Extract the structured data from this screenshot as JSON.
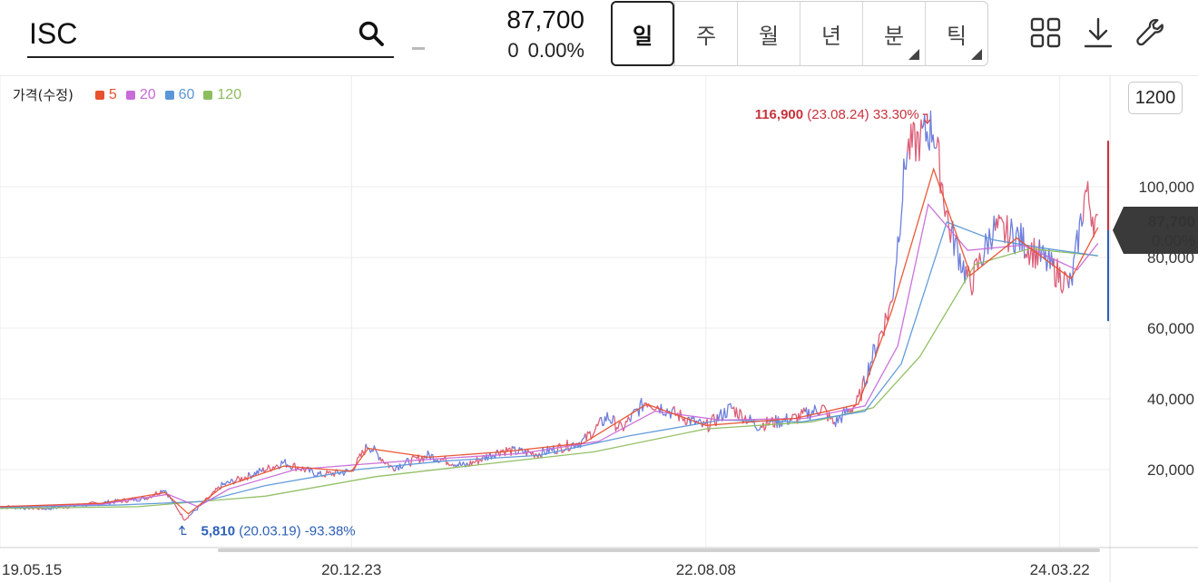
{
  "search": {
    "value": "ISC"
  },
  "quote": {
    "price": "87,700",
    "change": "0",
    "change_pct": "0.00%"
  },
  "period_tabs": [
    {
      "label": "일",
      "active": true,
      "has_corner": false
    },
    {
      "label": "주",
      "active": false,
      "has_corner": false
    },
    {
      "label": "월",
      "active": false,
      "has_corner": false
    },
    {
      "label": "년",
      "active": false,
      "has_corner": false
    },
    {
      "label": "분",
      "active": false,
      "has_corner": true
    },
    {
      "label": "틱",
      "active": false,
      "has_corner": true
    }
  ],
  "toolbar": {
    "icons": [
      "grid-layout-icon",
      "download-icon",
      "wrench-icon"
    ]
  },
  "interval": "1200",
  "colors": {
    "ma5": "#e8512d",
    "ma20": "#c86ad8",
    "ma60": "#5b97d8",
    "ma120": "#8dbd5e",
    "price": "#d84f6a",
    "price_alt": "#5f72d8",
    "high": "#c8323d",
    "low": "#2c5fb7",
    "tag_bg": "#3a3a3a"
  },
  "chart_data": {
    "type": "line",
    "legend": {
      "title": "가격(수정)",
      "items": [
        {
          "label": "5",
          "color": "#e8512d"
        },
        {
          "label": "20",
          "color": "#c86ad8"
        },
        {
          "label": "60",
          "color": "#5b97d8"
        },
        {
          "label": "120",
          "color": "#8dbd5e"
        }
      ]
    },
    "y_ticks": [
      "20,000",
      "40,000",
      "60,000",
      "80,000",
      "100,000"
    ],
    "y_tick_values": [
      20000,
      40000,
      60000,
      80000,
      100000
    ],
    "ylim": [
      0,
      120000
    ],
    "x_ticks": [
      {
        "label": "19.05.15",
        "value": "2019-05-15"
      },
      {
        "label": "20.12.23",
        "value": "2020-12-23"
      },
      {
        "label": "22.08.08",
        "value": "2022-08-08"
      },
      {
        "label": "24.03.22",
        "value": "2024-03-22"
      }
    ],
    "xlim": [
      "2019-05-15",
      "2024-06-14"
    ],
    "price_path": [
      [
        "2019-05-15",
        9500
      ],
      [
        "2019-08-01",
        9000
      ],
      [
        "2019-11-01",
        10500
      ],
      [
        "2020-01-15",
        12000
      ],
      [
        "2020-02-15",
        14500
      ],
      [
        "2020-03-19",
        5810
      ],
      [
        "2020-04-20",
        10500
      ],
      [
        "2020-05-20",
        15500
      ],
      [
        "2020-07-01",
        18000
      ],
      [
        "2020-09-01",
        22000
      ],
      [
        "2020-11-01",
        18500
      ],
      [
        "2020-12-23",
        19500
      ],
      [
        "2021-01-20",
        27000
      ],
      [
        "2021-03-01",
        20500
      ],
      [
        "2021-05-01",
        24000
      ],
      [
        "2021-07-01",
        21000
      ],
      [
        "2021-09-01",
        25500
      ],
      [
        "2021-11-01",
        24500
      ],
      [
        "2022-01-15",
        28000
      ],
      [
        "2022-02-25",
        35000
      ],
      [
        "2022-03-20",
        31500
      ],
      [
        "2022-05-01",
        39500
      ],
      [
        "2022-06-15",
        36000
      ],
      [
        "2022-08-08",
        32000
      ],
      [
        "2022-09-20",
        37500
      ],
      [
        "2022-11-01",
        32500
      ],
      [
        "2023-01-05",
        34500
      ],
      [
        "2023-02-20",
        37500
      ],
      [
        "2023-03-10",
        33000
      ],
      [
        "2023-04-20",
        39000
      ],
      [
        "2023-05-10",
        50000
      ],
      [
        "2023-06-15",
        67000
      ],
      [
        "2023-07-10",
        110000
      ],
      [
        "2023-08-24",
        116900
      ],
      [
        "2023-09-20",
        88000
      ],
      [
        "2023-10-25",
        72000
      ],
      [
        "2023-12-01",
        88000
      ],
      [
        "2024-01-10",
        86000
      ],
      [
        "2024-02-20",
        80000
      ],
      [
        "2024-04-10",
        72000
      ],
      [
        "2024-05-05",
        99000
      ],
      [
        "2024-05-25",
        87700
      ]
    ],
    "ma5": [
      [
        "2019-05-15",
        9500
      ],
      [
        "2019-11-01",
        10500
      ],
      [
        "2020-02-15",
        13500
      ],
      [
        "2020-03-25",
        7500
      ],
      [
        "2020-05-20",
        15000
      ],
      [
        "2020-09-01",
        21000
      ],
      [
        "2020-12-23",
        19500
      ],
      [
        "2021-01-20",
        26000
      ],
      [
        "2021-05-01",
        23500
      ],
      [
        "2021-09-01",
        25000
      ],
      [
        "2022-01-15",
        27500
      ],
      [
        "2022-05-01",
        38500
      ],
      [
        "2022-08-08",
        32500
      ],
      [
        "2023-01-05",
        34500
      ],
      [
        "2023-04-20",
        38500
      ],
      [
        "2023-06-15",
        65000
      ],
      [
        "2023-08-24",
        105000
      ],
      [
        "2023-10-25",
        75000
      ],
      [
        "2024-01-10",
        85500
      ],
      [
        "2024-04-10",
        74000
      ],
      [
        "2024-05-25",
        88500
      ]
    ],
    "ma20": [
      [
        "2019-05-15",
        9500
      ],
      [
        "2019-11-01",
        10200
      ],
      [
        "2020-02-20",
        13000
      ],
      [
        "2020-04-10",
        9500
      ],
      [
        "2020-06-01",
        14500
      ],
      [
        "2020-09-20",
        20000
      ],
      [
        "2021-01-10",
        21500
      ],
      [
        "2021-05-10",
        23000
      ],
      [
        "2021-10-01",
        24500
      ],
      [
        "2022-02-10",
        28000
      ],
      [
        "2022-05-15",
        36500
      ],
      [
        "2022-09-01",
        34000
      ],
      [
        "2023-01-20",
        34500
      ],
      [
        "2023-05-01",
        38000
      ],
      [
        "2023-06-25",
        55000
      ],
      [
        "2023-08-15",
        95000
      ],
      [
        "2023-10-20",
        82000
      ],
      [
        "2024-01-20",
        83500
      ],
      [
        "2024-04-20",
        76500
      ],
      [
        "2024-05-25",
        84000
      ]
    ],
    "ma60": [
      [
        "2019-05-15",
        9300
      ],
      [
        "2019-12-01",
        10000
      ],
      [
        "2020-04-20",
        11000
      ],
      [
        "2020-08-01",
        15500
      ],
      [
        "2021-01-01",
        20000
      ],
      [
        "2021-06-01",
        22500
      ],
      [
        "2021-11-01",
        24000
      ],
      [
        "2022-04-01",
        29500
      ],
      [
        "2022-09-01",
        34000
      ],
      [
        "2023-01-15",
        33500
      ],
      [
        "2023-05-01",
        36500
      ],
      [
        "2023-07-01",
        50000
      ],
      [
        "2023-09-15",
        90000
      ],
      [
        "2023-12-01",
        85000
      ],
      [
        "2024-03-01",
        82500
      ],
      [
        "2024-05-25",
        80500
      ]
    ],
    "ma120": [
      [
        "2019-05-15",
        9000
      ],
      [
        "2020-01-01",
        9500
      ],
      [
        "2020-08-01",
        12500
      ],
      [
        "2021-02-01",
        18000
      ],
      [
        "2021-08-01",
        21500
      ],
      [
        "2022-02-01",
        25000
      ],
      [
        "2022-08-08",
        31500
      ],
      [
        "2023-02-01",
        33500
      ],
      [
        "2023-05-15",
        37500
      ],
      [
        "2023-08-01",
        52000
      ],
      [
        "2023-11-01",
        78000
      ],
      [
        "2024-02-01",
        82500
      ],
      [
        "2024-05-25",
        80500
      ]
    ],
    "current": {
      "price_label": "87,700",
      "pct_label": "0.00%",
      "value": 87700
    },
    "today_range": {
      "date": "2024-06-14",
      "high": 113000,
      "low": 62000
    },
    "annotations": {
      "high": {
        "date": "2023-08-24",
        "value": 116900,
        "price": "116,900",
        "detail": "(23.08.24) 33.30%"
      },
      "low": {
        "date": "2020-03-19",
        "value": 5810,
        "price": "5,810",
        "detail": "(20.03.19) -93.38%"
      }
    }
  }
}
